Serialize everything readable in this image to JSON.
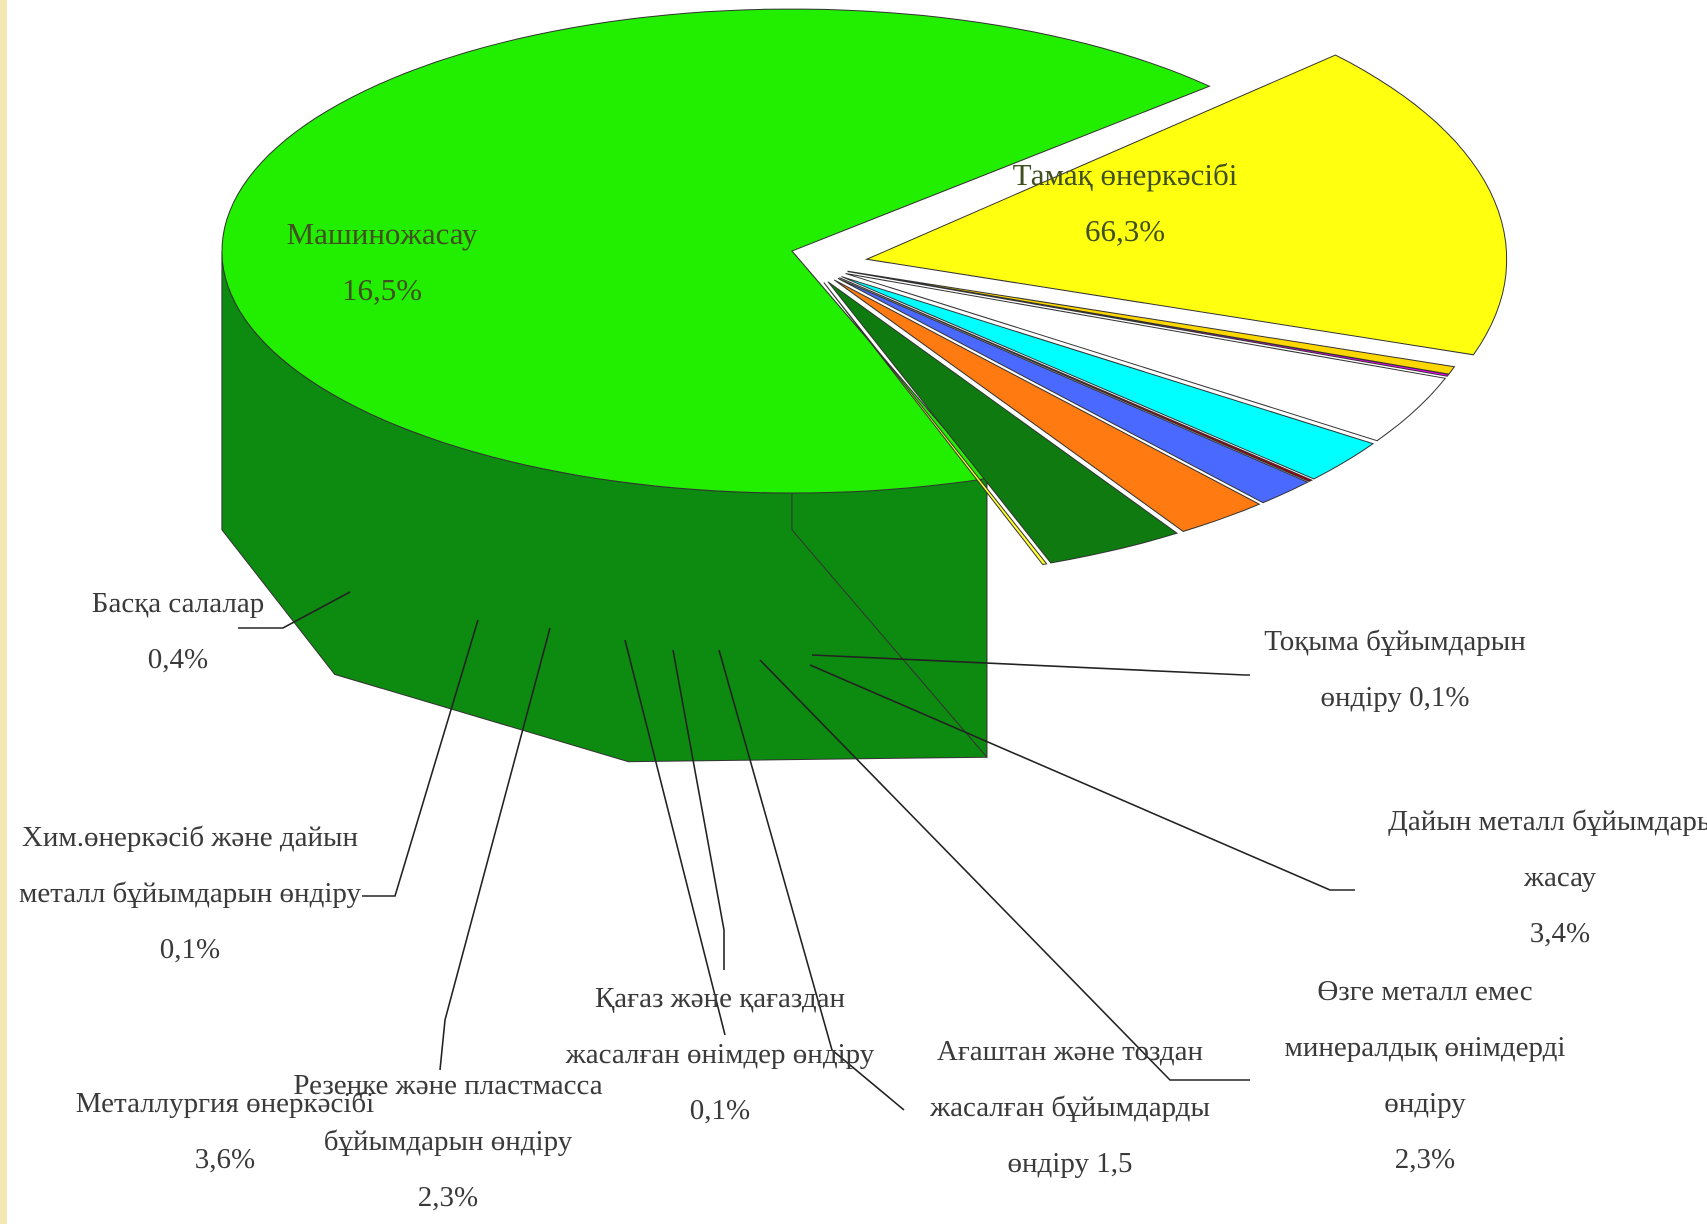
{
  "chart_data": {
    "type": "pie",
    "style": "3d-exploded",
    "slices": [
      {
        "label_lines": [
          "Тамақ өнеркәсібі",
          "66,3%"
        ],
        "value": 66.3,
        "color_top": "#22ee00",
        "color_side": "#0d8a10"
      },
      {
        "label_lines": [
          "Машинoжасау",
          "16,5%"
        ],
        "value": 16.5,
        "color_top": "#ffff10",
        "color_side": "#a09a0a"
      },
      {
        "label_lines": [
          "Басқа салалар",
          "0,4%"
        ],
        "value": 0.4,
        "color_top": "#ffd700",
        "color_side": "#8a8400"
      },
      {
        "label_lines": [
          "Хим.өнеркәсіб және дайын",
          "металл бұйымдарын өндіру",
          "0,1%"
        ],
        "value": 0.1,
        "color_top": "#ff00ff",
        "color_side": "#9a0096"
      },
      {
        "label_lines": [
          "Металлургия өнеркәсібі",
          "3,6%"
        ],
        "value": 3.6,
        "color_top": "#ffffff",
        "color_side": "#9a9a9a"
      },
      {
        "label_lines": [
          "Резеңке және пластмасса",
          "бұйымдарын өндіру",
          "2,3%"
        ],
        "value": 2.3,
        "color_top": "#00ffff",
        "color_side": "#008a94"
      },
      {
        "label_lines": [
          "Қағаз және қағаздан",
          "жасалған өнімдер өндіру",
          "0,1%"
        ],
        "value": 0.1,
        "color_top": "#a00010",
        "color_side": "#5a0008"
      },
      {
        "label_lines": [
          "Ағаштан және тоздан",
          "жасалған бұйымдарды",
          "өндіру 1,5"
        ],
        "value": 1.5,
        "color_top": "#4a6aff",
        "color_side": "#1a2e9a"
      },
      {
        "label_lines": [
          "Өзге металл емес",
          "минералдық өнімдерді",
          "өндіру",
          "2,3%"
        ],
        "value": 2.3,
        "color_top": "#ff7a10",
        "color_side": "#b04008"
      },
      {
        "label_lines": [
          "Дайын металл бұйымдарын",
          "жасау",
          "3,4%"
        ],
        "value": 3.4,
        "color_top": "#0e7a10",
        "color_side": "#063a08"
      },
      {
        "label_lines": [
          "Тоқыма бұйымдарын",
          "өндіру 0,1%"
        ],
        "value": 0.1,
        "color_top": "#ffff30",
        "color_side": "#8a8a10"
      }
    ]
  }
}
